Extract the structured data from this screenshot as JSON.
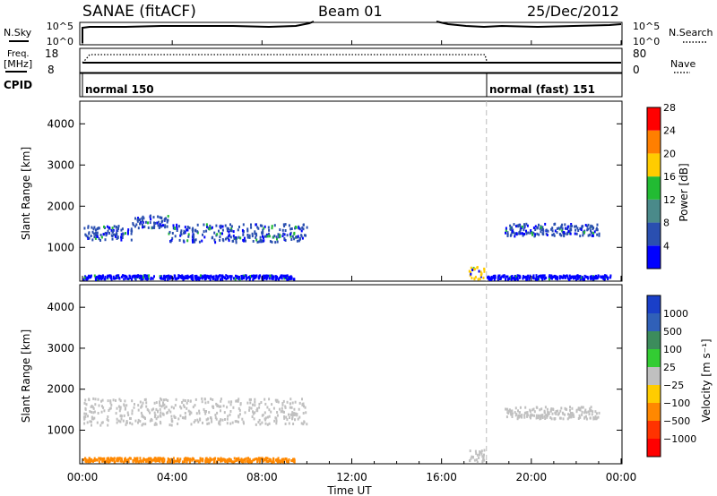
{
  "header": {
    "radar": "SANAE (fitACF)",
    "beam": "Beam 01",
    "date": "25/Dec/2012"
  },
  "top_panels": {
    "nsky_label": "N.Sky",
    "nsearch_label": "N.Search",
    "freq_label_1": "Freq.",
    "freq_label_2": "[MHz]",
    "nave_label": "Nave",
    "cpid_label": "CPID",
    "nsky_ticks": [
      "10^5",
      "10^0"
    ],
    "nsearch_ticks": [
      "10^5",
      "10^0"
    ],
    "freq_ticks": [
      "18",
      "8"
    ],
    "nave_ticks": [
      "80",
      "0"
    ],
    "cpid_segments": [
      {
        "label": "normal 150",
        "start_h": 0,
        "end_h": 18
      },
      {
        "label": "normal (fast) 151",
        "start_h": 18,
        "end_h": 24
      }
    ],
    "cpid_change_time": "18:00"
  },
  "axes": {
    "xlabel": "Time UT",
    "ylabel": "Slant Range [km]",
    "x_ticks": [
      "00:00",
      "04:00",
      "08:00",
      "12:00",
      "16:00",
      "20:00",
      "00:00"
    ],
    "x_tick_hours": [
      0,
      4,
      8,
      12,
      16,
      20,
      24
    ],
    "y_ticks": [
      1000,
      2000,
      3000,
      4000
    ],
    "ylim": [
      180,
      4550
    ]
  },
  "power_colorbar": {
    "label": "Power [dB]",
    "ticks": [
      "4",
      "8",
      "12",
      "16",
      "20",
      "24",
      "28"
    ],
    "colors": [
      "#0000ff",
      "#2a4fb0",
      "#4a8a8a",
      "#22bb33",
      "#ffcc00",
      "#ff7f00",
      "#ff0000"
    ]
  },
  "velocity_colorbar": {
    "label": "Velocity [m s⁻¹]",
    "ticks": [
      "1000",
      "500",
      "100",
      "25",
      "−25",
      "−100",
      "−500",
      "−1000"
    ],
    "colors": [
      "#1a3fc8",
      "#3060b8",
      "#3c8c5c",
      "#33cc33",
      "#c0c0c0",
      "#ffcc00",
      "#ff8800",
      "#ff3300",
      "#ff0000"
    ]
  },
  "chart_data": {
    "type": "scatter",
    "title": "SANAE (fitACF)",
    "subtitle": "Beam 01 25/Dec/2012",
    "xlabel": "Time UT",
    "ylabel": "Slant Range [km]",
    "xlim": [
      0,
      24
    ],
    "ylim": [
      180,
      4550
    ],
    "series": [
      {
        "name": "Power [dB]",
        "regions": [
          {
            "t_start": 0.0,
            "t_end": 2.2,
            "r_low": 1200,
            "r_high": 1550,
            "level": "8"
          },
          {
            "t_start": 2.2,
            "t_end": 3.8,
            "r_low": 1500,
            "r_high": 1800,
            "level": "8"
          },
          {
            "t_start": 3.8,
            "t_end": 10.0,
            "r_low": 1150,
            "r_high": 1600,
            "level": "8"
          },
          {
            "t_start": 0.0,
            "t_end": 9.5,
            "r_low": 250,
            "r_high": 350,
            "level": "4"
          },
          {
            "t_start": 17.2,
            "t_end": 17.9,
            "r_low": 250,
            "r_high": 550,
            "level": "20"
          },
          {
            "t_start": 18.8,
            "t_end": 23.0,
            "r_low": 1300,
            "r_high": 1600,
            "level": "8"
          },
          {
            "t_start": 18.0,
            "t_end": 23.5,
            "r_low": 250,
            "r_high": 350,
            "level": "4"
          }
        ]
      },
      {
        "name": "Velocity [m s⁻¹]",
        "regions": [
          {
            "t_start": 0.0,
            "t_end": 10.0,
            "r_low": 1150,
            "r_high": 1800,
            "level": "25"
          },
          {
            "t_start": 0.0,
            "t_end": 9.5,
            "r_low": 250,
            "r_high": 350,
            "level": "−100"
          },
          {
            "t_start": 17.2,
            "t_end": 17.9,
            "r_low": 250,
            "r_high": 550,
            "level": "25"
          },
          {
            "t_start": 18.8,
            "t_end": 23.0,
            "r_low": 1300,
            "r_high": 1600,
            "level": "25"
          }
        ]
      }
    ]
  }
}
